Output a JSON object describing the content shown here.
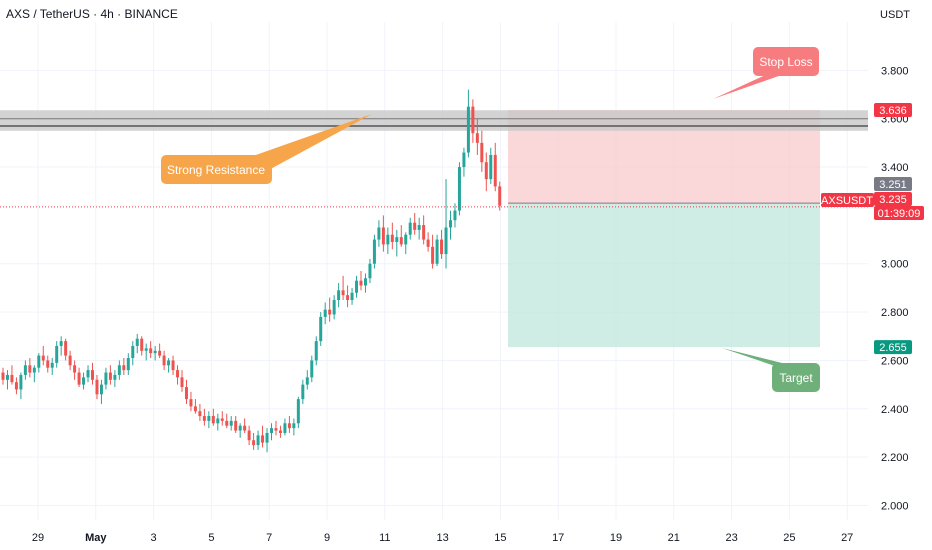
{
  "header": {
    "title": "AXS / TetherUS · 4h · BINANCE",
    "currency": "USDT"
  },
  "colors": {
    "up": "#26a69a",
    "down": "#ef5350",
    "stop_zone": "#f8c9cc",
    "target_zone": "#bfe7dc",
    "resistance_band": "#c8c8c8",
    "stop_badge": "#f77c80",
    "resistance_badge": "#f7a54a",
    "target_badge": "#6fb07a",
    "price_badge": "#f23645",
    "entry_badge": "#787b86",
    "target_price_badge": "#089981"
  },
  "chart_data": {
    "type": "candlestick",
    "x_ticks": [
      "29",
      "May",
      "3",
      "5",
      "7",
      "9",
      "11",
      "13",
      "15",
      "17",
      "19",
      "21",
      "23",
      "25",
      "27"
    ],
    "y_ticks": [
      "3.800",
      "3.600",
      "3.400",
      "3.000",
      "2.800",
      "2.600",
      "2.400",
      "2.200",
      "2.000"
    ],
    "ylim": [
      1.94,
      4.0
    ],
    "price_labels": {
      "stop": "3.636",
      "entry": "3.251",
      "current_symbol": "AXSUSDT",
      "current": "3.235",
      "countdown": "01:39:09",
      "target": "2.655"
    },
    "levels": {
      "resistance_low": 3.57,
      "resistance_high": 3.6,
      "stop": 3.636,
      "entry": 3.251,
      "current": 3.235,
      "target": 2.655
    },
    "annotations": {
      "stop_loss": "Stop Loss",
      "resistance": "Strong Resistance",
      "target": "Target"
    },
    "candles": [
      [
        2.55,
        2.57,
        2.5,
        2.52
      ],
      [
        2.52,
        2.56,
        2.48,
        2.54
      ],
      [
        2.54,
        2.58,
        2.5,
        2.51
      ],
      [
        2.51,
        2.53,
        2.46,
        2.48
      ],
      [
        2.48,
        2.55,
        2.44,
        2.54
      ],
      [
        2.54,
        2.6,
        2.52,
        2.58
      ],
      [
        2.58,
        2.61,
        2.53,
        2.55
      ],
      [
        2.55,
        2.58,
        2.51,
        2.57
      ],
      [
        2.57,
        2.63,
        2.55,
        2.62
      ],
      [
        2.62,
        2.66,
        2.58,
        2.6
      ],
      [
        2.6,
        2.62,
        2.55,
        2.57
      ],
      [
        2.57,
        2.61,
        2.54,
        2.59
      ],
      [
        2.59,
        2.68,
        2.57,
        2.66
      ],
      [
        2.66,
        2.7,
        2.62,
        2.68
      ],
      [
        2.68,
        2.69,
        2.6,
        2.62
      ],
      [
        2.62,
        2.64,
        2.56,
        2.58
      ],
      [
        2.58,
        2.6,
        2.52,
        2.55
      ],
      [
        2.55,
        2.57,
        2.49,
        2.5
      ],
      [
        2.5,
        2.55,
        2.48,
        2.53
      ],
      [
        2.53,
        2.58,
        2.51,
        2.56
      ],
      [
        2.56,
        2.59,
        2.5,
        2.52
      ],
      [
        2.52,
        2.54,
        2.44,
        2.46
      ],
      [
        2.46,
        2.52,
        2.42,
        2.5
      ],
      [
        2.5,
        2.57,
        2.48,
        2.55
      ],
      [
        2.55,
        2.58,
        2.5,
        2.52
      ],
      [
        2.52,
        2.56,
        2.49,
        2.54
      ],
      [
        2.54,
        2.6,
        2.52,
        2.58
      ],
      [
        2.58,
        2.61,
        2.54,
        2.56
      ],
      [
        2.56,
        2.63,
        2.54,
        2.61
      ],
      [
        2.61,
        2.68,
        2.58,
        2.66
      ],
      [
        2.66,
        2.71,
        2.63,
        2.69
      ],
      [
        2.69,
        2.7,
        2.62,
        2.64
      ],
      [
        2.64,
        2.67,
        2.6,
        2.65
      ],
      [
        2.65,
        2.68,
        2.61,
        2.63
      ],
      [
        2.63,
        2.66,
        2.6,
        2.64
      ],
      [
        2.64,
        2.67,
        2.61,
        2.62
      ],
      [
        2.62,
        2.64,
        2.56,
        2.58
      ],
      [
        2.58,
        2.61,
        2.55,
        2.6
      ],
      [
        2.6,
        2.62,
        2.54,
        2.56
      ],
      [
        2.56,
        2.58,
        2.5,
        2.53
      ],
      [
        2.53,
        2.56,
        2.47,
        2.49
      ],
      [
        2.49,
        2.52,
        2.42,
        2.44
      ],
      [
        2.44,
        2.47,
        2.39,
        2.41
      ],
      [
        2.41,
        2.44,
        2.38,
        2.39
      ],
      [
        2.39,
        2.42,
        2.35,
        2.37
      ],
      [
        2.37,
        2.4,
        2.33,
        2.35
      ],
      [
        2.35,
        2.39,
        2.32,
        2.37
      ],
      [
        2.37,
        2.4,
        2.33,
        2.34
      ],
      [
        2.34,
        2.38,
        2.31,
        2.36
      ],
      [
        2.36,
        2.39,
        2.33,
        2.35
      ],
      [
        2.35,
        2.38,
        2.32,
        2.33
      ],
      [
        2.33,
        2.37,
        2.31,
        2.35
      ],
      [
        2.35,
        2.37,
        2.3,
        2.31
      ],
      [
        2.31,
        2.34,
        2.28,
        2.33
      ],
      [
        2.33,
        2.36,
        2.3,
        2.31
      ],
      [
        2.31,
        2.33,
        2.25,
        2.27
      ],
      [
        2.27,
        2.3,
        2.23,
        2.25
      ],
      [
        2.25,
        2.31,
        2.23,
        2.29
      ],
      [
        2.29,
        2.33,
        2.24,
        2.26
      ],
      [
        2.26,
        2.32,
        2.22,
        2.3
      ],
      [
        2.3,
        2.34,
        2.27,
        2.32
      ],
      [
        2.32,
        2.35,
        2.29,
        2.31
      ],
      [
        2.31,
        2.33,
        2.28,
        2.3
      ],
      [
        2.3,
        2.36,
        2.29,
        2.34
      ],
      [
        2.34,
        2.37,
        2.3,
        2.32
      ],
      [
        2.32,
        2.36,
        2.29,
        2.34
      ],
      [
        2.34,
        2.45,
        2.32,
        2.44
      ],
      [
        2.44,
        2.52,
        2.42,
        2.5
      ],
      [
        2.5,
        2.56,
        2.48,
        2.53
      ],
      [
        2.53,
        2.62,
        2.51,
        2.6
      ],
      [
        2.6,
        2.7,
        2.58,
        2.68
      ],
      [
        2.68,
        2.8,
        2.66,
        2.78
      ],
      [
        2.78,
        2.84,
        2.75,
        2.81
      ],
      [
        2.81,
        2.86,
        2.76,
        2.79
      ],
      [
        2.79,
        2.87,
        2.77,
        2.85
      ],
      [
        2.85,
        2.92,
        2.82,
        2.89
      ],
      [
        2.89,
        2.95,
        2.85,
        2.87
      ],
      [
        2.87,
        2.91,
        2.82,
        2.85
      ],
      [
        2.85,
        2.9,
        2.83,
        2.88
      ],
      [
        2.88,
        2.95,
        2.86,
        2.93
      ],
      [
        2.93,
        2.97,
        2.89,
        2.91
      ],
      [
        2.91,
        2.96,
        2.88,
        2.94
      ],
      [
        2.94,
        3.02,
        2.92,
        3.0
      ],
      [
        3.0,
        3.12,
        2.98,
        3.1
      ],
      [
        3.1,
        3.18,
        3.07,
        3.15
      ],
      [
        3.15,
        3.2,
        3.05,
        3.08
      ],
      [
        3.08,
        3.15,
        3.04,
        3.12
      ],
      [
        3.12,
        3.17,
        3.06,
        3.09
      ],
      [
        3.09,
        3.14,
        3.03,
        3.11
      ],
      [
        3.11,
        3.16,
        3.07,
        3.08
      ],
      [
        3.08,
        3.13,
        3.04,
        3.12
      ],
      [
        3.12,
        3.19,
        3.1,
        3.17
      ],
      [
        3.17,
        3.21,
        3.12,
        3.14
      ],
      [
        3.14,
        3.19,
        3.1,
        3.16
      ],
      [
        3.16,
        3.2,
        3.08,
        3.1
      ],
      [
        3.1,
        3.13,
        3.05,
        3.07
      ],
      [
        3.07,
        3.12,
        2.98,
        3.0
      ],
      [
        3.0,
        3.12,
        2.99,
        3.1
      ],
      [
        3.1,
        3.14,
        3.02,
        3.04
      ],
      [
        3.04,
        3.35,
        2.98,
        3.15
      ],
      [
        3.15,
        3.22,
        3.1,
        3.18
      ],
      [
        3.18,
        3.25,
        3.15,
        3.22
      ],
      [
        3.22,
        3.42,
        3.2,
        3.4
      ],
      [
        3.4,
        3.48,
        3.36,
        3.46
      ],
      [
        3.46,
        3.72,
        3.44,
        3.65
      ],
      [
        3.65,
        3.68,
        3.5,
        3.54
      ],
      [
        3.54,
        3.6,
        3.45,
        3.5
      ],
      [
        3.5,
        3.55,
        3.38,
        3.42
      ],
      [
        3.42,
        3.46,
        3.3,
        3.35
      ],
      [
        3.35,
        3.48,
        3.33,
        3.45
      ],
      [
        3.45,
        3.5,
        3.3,
        3.32
      ],
      [
        3.32,
        3.34,
        3.22,
        3.24
      ]
    ]
  }
}
